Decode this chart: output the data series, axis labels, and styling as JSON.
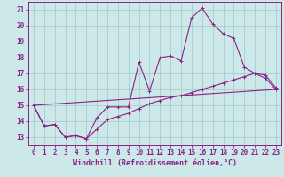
{
  "background_color": "#cce8e8",
  "line_color": "#882288",
  "grid_color": "#aacccc",
  "xlabel": "Windchill (Refroidissement éolien,°C)",
  "xlabel_fontsize": 6.0,
  "tick_fontsize": 5.5,
  "xlim": [
    -0.5,
    23.5
  ],
  "ylim": [
    12.5,
    21.5
  ],
  "yticks": [
    13,
    14,
    15,
    16,
    17,
    18,
    19,
    20,
    21
  ],
  "xticks": [
    0,
    1,
    2,
    3,
    4,
    5,
    6,
    7,
    8,
    9,
    10,
    11,
    12,
    13,
    14,
    15,
    16,
    17,
    18,
    19,
    20,
    21,
    22,
    23
  ],
  "line1_x": [
    0,
    1,
    2,
    3,
    4,
    5,
    6,
    7,
    8,
    9,
    10,
    11,
    12,
    13,
    14,
    15,
    16,
    17,
    18,
    19,
    20,
    21,
    22,
    23
  ],
  "line1_y": [
    15.0,
    13.7,
    13.8,
    13.0,
    13.1,
    12.9,
    14.2,
    14.9,
    14.9,
    14.9,
    17.7,
    15.9,
    18.0,
    18.1,
    17.8,
    20.5,
    21.1,
    20.1,
    19.5,
    19.2,
    17.4,
    17.0,
    16.7,
    16.0
  ],
  "line2_x": [
    0,
    1,
    2,
    3,
    4,
    5,
    6,
    7,
    8,
    9,
    10,
    11,
    12,
    13,
    14,
    15,
    16,
    17,
    18,
    19,
    20,
    21,
    22,
    23
  ],
  "line2_y": [
    15.0,
    13.7,
    13.8,
    13.0,
    13.1,
    12.9,
    13.5,
    14.1,
    14.3,
    14.5,
    14.8,
    15.1,
    15.3,
    15.5,
    15.6,
    15.8,
    16.0,
    16.2,
    16.4,
    16.6,
    16.8,
    17.0,
    16.9,
    16.1
  ],
  "line3_x": [
    0,
    23
  ],
  "line3_y": [
    15.0,
    16.0
  ],
  "figwidth": 3.2,
  "figheight": 2.0,
  "dpi": 100
}
